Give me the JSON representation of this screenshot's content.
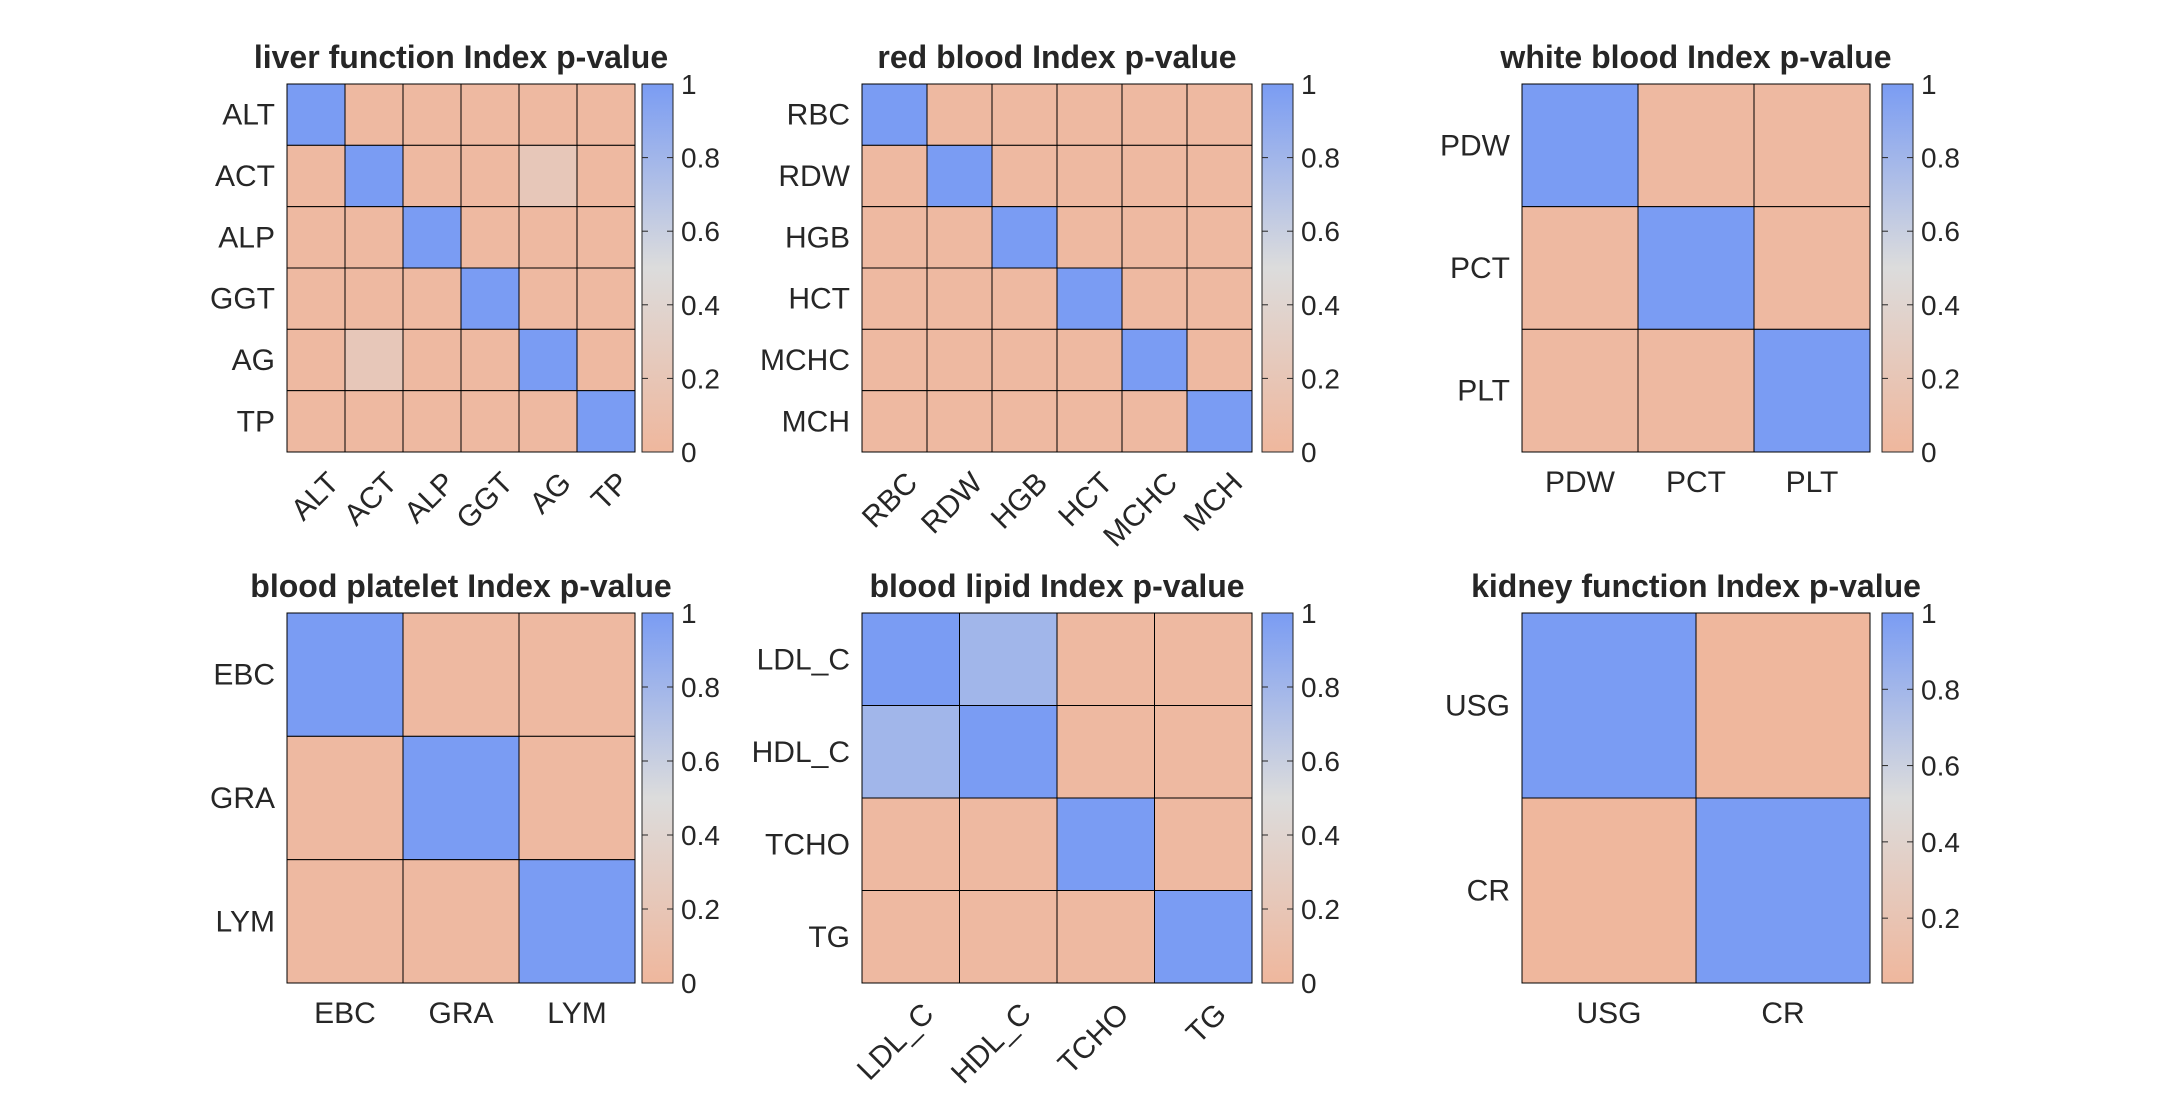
{
  "figure": {
    "background": "#ffffff"
  },
  "colormap": {
    "low": "#efb79d",
    "mid": "#dcdcdc",
    "high": "#7a9cf3",
    "edge": "#000000"
  },
  "chart_data": [
    {
      "type": "heatmap",
      "title": "liver function Index p-value",
      "labels": [
        "ALT",
        "ACT",
        "ALP",
        "GGT",
        "AG",
        "TP"
      ],
      "rotate_x_labels": true,
      "clim": [
        0,
        1
      ],
      "colorbar_ticks": [
        "0",
        "0.2",
        "0.4",
        "0.6",
        "0.8",
        "1"
      ],
      "values": [
        [
          1,
          0.03,
          0.03,
          0.03,
          0.03,
          0.03
        ],
        [
          0.03,
          1,
          0.03,
          0.03,
          0.22,
          0.03
        ],
        [
          0.03,
          0.03,
          1,
          0.03,
          0.03,
          0.03
        ],
        [
          0.03,
          0.03,
          0.03,
          1,
          0.03,
          0.03
        ],
        [
          0.03,
          0.22,
          0.03,
          0.03,
          1,
          0.03
        ],
        [
          0.03,
          0.03,
          0.03,
          0.03,
          0.03,
          1
        ]
      ]
    },
    {
      "type": "heatmap",
      "title": "red blood Index p-value",
      "labels": [
        "RBC",
        "RDW",
        "HGB",
        "HCT",
        "MCHC",
        "MCH"
      ],
      "rotate_x_labels": true,
      "clim": [
        0,
        1
      ],
      "colorbar_ticks": [
        "0",
        "0.2",
        "0.4",
        "0.6",
        "0.8",
        "1"
      ],
      "values": [
        [
          1,
          0.03,
          0.03,
          0.03,
          0.03,
          0.03
        ],
        [
          0.03,
          1,
          0.03,
          0.03,
          0.03,
          0.03
        ],
        [
          0.03,
          0.03,
          1,
          0.03,
          0.03,
          0.03
        ],
        [
          0.03,
          0.03,
          0.03,
          1,
          0.03,
          0.03
        ],
        [
          0.03,
          0.03,
          0.03,
          0.03,
          1,
          0.03
        ],
        [
          0.03,
          0.03,
          0.03,
          0.03,
          0.03,
          1
        ]
      ]
    },
    {
      "type": "heatmap",
      "title": "white blood Index p-value",
      "labels": [
        "PDW",
        "PCT",
        "PLT"
      ],
      "rotate_x_labels": false,
      "clim": [
        0,
        1
      ],
      "colorbar_ticks": [
        "0",
        "0.2",
        "0.4",
        "0.6",
        "0.8",
        "1"
      ],
      "values": [
        [
          1,
          0.03,
          0.03
        ],
        [
          0.03,
          1,
          0.03
        ],
        [
          0.03,
          0.03,
          1
        ]
      ]
    },
    {
      "type": "heatmap",
      "title": "blood platelet Index p-value",
      "labels": [
        "EBC",
        "GRA",
        "LYM"
      ],
      "rotate_x_labels": false,
      "clim": [
        0,
        1
      ],
      "colorbar_ticks": [
        "0",
        "0.2",
        "0.4",
        "0.6",
        "0.8",
        "1"
      ],
      "values": [
        [
          1,
          0.03,
          0.03
        ],
        [
          0.03,
          1,
          0.03
        ],
        [
          0.03,
          0.03,
          1
        ]
      ]
    },
    {
      "type": "heatmap",
      "title": "blood lipid Index p-value",
      "labels": [
        "LDL_C",
        "HDL_C",
        "TCHO",
        "TG"
      ],
      "rotate_x_labels": true,
      "clim": [
        0,
        1
      ],
      "colorbar_ticks": [
        "0",
        "0.2",
        "0.4",
        "0.6",
        "0.8",
        "1"
      ],
      "values": [
        [
          1,
          0.8,
          0.03,
          0.03
        ],
        [
          0.8,
          1,
          0.03,
          0.03
        ],
        [
          0.03,
          0.03,
          1,
          0.03
        ],
        [
          0.03,
          0.03,
          0.03,
          1
        ]
      ]
    },
    {
      "type": "heatmap",
      "title": "kidney function Index p-value",
      "labels": [
        "USG",
        "CR"
      ],
      "rotate_x_labels": false,
      "clim": [
        0.03,
        1
      ],
      "colorbar_ticks": [
        "0.2",
        "0.4",
        "0.6",
        "0.8",
        "1"
      ],
      "values": [
        [
          1,
          0.03
        ],
        [
          0.03,
          1
        ]
      ]
    }
  ]
}
